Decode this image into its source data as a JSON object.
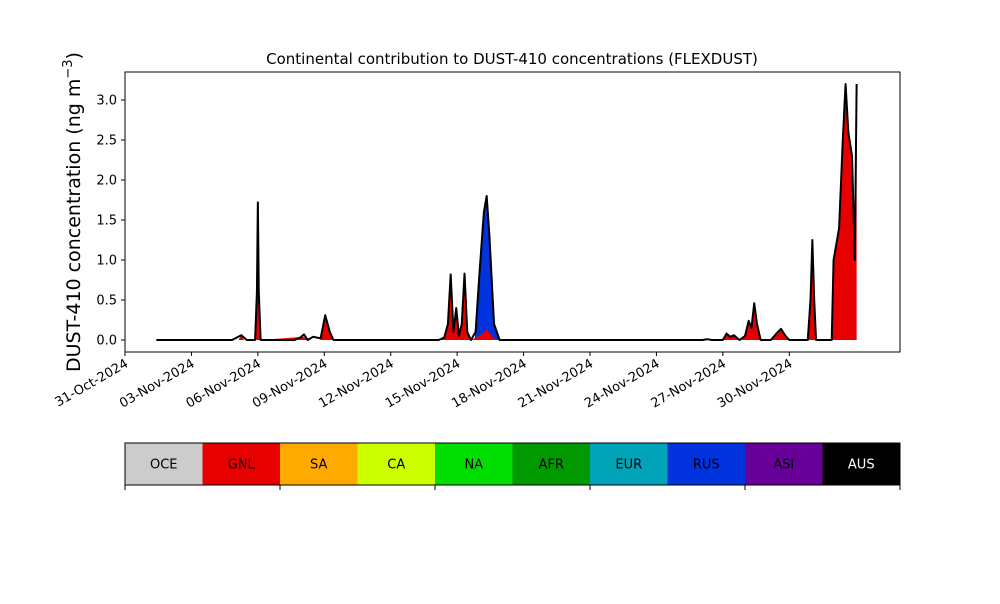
{
  "chart_data": {
    "type": "area",
    "title": "Continental contribution to DUST-410 concentrations (FLEXDUST)",
    "ylabel_main": "DUST-410 concentration (ng m",
    "ylabel_exp": "−3",
    "ylabel_close": ")",
    "xlabel": "",
    "ylim": [
      -0.15,
      3.35
    ],
    "yticks": [
      0.0,
      0.5,
      1.0,
      1.5,
      2.0,
      2.5,
      3.0
    ],
    "ytick_labels": [
      "0.0",
      "0.5",
      "1.0",
      "1.5",
      "2.0",
      "2.5",
      "3.0"
    ],
    "xlim_days": [
      "2024-10-31T00:00",
      "2024-12-05T00:00"
    ],
    "xticks": [
      "2024-10-31",
      "2024-11-03",
      "2024-11-06",
      "2024-11-09",
      "2024-11-12",
      "2024-11-15",
      "2024-11-18",
      "2024-11-21",
      "2024-11-24",
      "2024-11-27",
      "2024-11-30"
    ],
    "xtick_labels": [
      "31-Oct-2024",
      "03-Nov-2024",
      "06-Nov-2024",
      "09-Nov-2024",
      "12-Nov-2024",
      "15-Nov-2024",
      "18-Nov-2024",
      "21-Nov-2024",
      "24-Nov-2024",
      "27-Nov-2024",
      "30-Nov-2024"
    ],
    "grid": false,
    "total_series": {
      "name": "total",
      "color": "#000000",
      "points": [
        [
          "2024-11-01T10:00",
          0.0
        ],
        [
          "2024-11-04T20:00",
          0.0
        ],
        [
          "2024-11-05T06:00",
          0.06
        ],
        [
          "2024-11-05T12:00",
          0.0
        ],
        [
          "2024-11-05T21:00",
          0.0
        ],
        [
          "2024-11-05T23:00",
          0.6
        ],
        [
          "2024-11-06T00:00",
          1.72
        ],
        [
          "2024-11-06T01:00",
          0.6
        ],
        [
          "2024-11-06T03:00",
          0.0
        ],
        [
          "2024-11-07T16:00",
          0.0
        ],
        [
          "2024-11-07T22:00",
          0.03
        ],
        [
          "2024-11-08T02:00",
          0.07
        ],
        [
          "2024-11-08T06:00",
          0.0
        ],
        [
          "2024-11-08T12:00",
          0.04
        ],
        [
          "2024-11-08T20:00",
          0.02
        ],
        [
          "2024-11-09T01:00",
          0.31
        ],
        [
          "2024-11-09T06:00",
          0.1
        ],
        [
          "2024-11-09T10:00",
          0.0
        ],
        [
          "2024-11-14T04:00",
          0.0
        ],
        [
          "2024-11-14T10:00",
          0.03
        ],
        [
          "2024-11-14T14:00",
          0.2
        ],
        [
          "2024-11-14T17:00",
          0.82
        ],
        [
          "2024-11-14T20:00",
          0.1
        ],
        [
          "2024-11-14T23:00",
          0.4
        ],
        [
          "2024-11-15T02:00",
          0.05
        ],
        [
          "2024-11-15T05:00",
          0.2
        ],
        [
          "2024-11-15T08:00",
          0.83
        ],
        [
          "2024-11-15T11:00",
          0.1
        ],
        [
          "2024-11-15T15:00",
          0.0
        ],
        [
          "2024-11-15T20:00",
          0.1
        ],
        [
          "2024-11-16T00:00",
          0.8
        ],
        [
          "2024-11-16T05:00",
          1.6
        ],
        [
          "2024-11-16T08:00",
          1.8
        ],
        [
          "2024-11-16T11:00",
          1.3
        ],
        [
          "2024-11-16T16:00",
          0.2
        ],
        [
          "2024-11-16T22:00",
          0.0
        ],
        [
          "2024-11-18T08:00",
          0.0
        ],
        [
          "2024-11-19T00:00",
          0.0
        ],
        [
          "2024-11-26T02:00",
          0.0
        ],
        [
          "2024-11-26T07:00",
          0.01
        ],
        [
          "2024-11-26T12:00",
          0.0
        ],
        [
          "2024-11-27T00:00",
          0.0
        ],
        [
          "2024-11-27T04:00",
          0.08
        ],
        [
          "2024-11-27T08:00",
          0.04
        ],
        [
          "2024-11-27T12:00",
          0.06
        ],
        [
          "2024-11-27T18:00",
          0.0
        ],
        [
          "2024-11-28T00:00",
          0.05
        ],
        [
          "2024-11-28T04:00",
          0.24
        ],
        [
          "2024-11-28T07:00",
          0.15
        ],
        [
          "2024-11-28T10:00",
          0.46
        ],
        [
          "2024-11-28T13:00",
          0.2
        ],
        [
          "2024-11-28T17:00",
          0.0
        ],
        [
          "2024-11-29T04:00",
          0.0
        ],
        [
          "2024-11-29T10:00",
          0.08
        ],
        [
          "2024-11-29T15:00",
          0.14
        ],
        [
          "2024-11-29T20:00",
          0.05
        ],
        [
          "2024-11-30T00:00",
          0.0
        ],
        [
          "2024-11-30T20:00",
          0.0
        ],
        [
          "2024-11-30T23:00",
          0.5
        ],
        [
          "2024-12-01T01:00",
          1.25
        ],
        [
          "2024-12-01T03:00",
          0.5
        ],
        [
          "2024-12-01T05:00",
          0.0
        ],
        [
          "2024-12-01T22:00",
          0.0
        ],
        [
          "2024-12-02T00:00",
          1.0
        ],
        [
          "2024-12-02T06:00",
          1.4
        ],
        [
          "2024-12-02T10:00",
          2.5
        ],
        [
          "2024-12-02T13:00",
          3.2
        ],
        [
          "2024-12-02T16:00",
          2.6
        ],
        [
          "2024-12-02T20:00",
          2.3
        ],
        [
          "2024-12-02T23:00",
          1.0
        ],
        [
          "2024-12-03T01:00",
          3.2
        ]
      ]
    },
    "stacked_series": [
      {
        "name": "RUS",
        "color": "#0033dd",
        "points": [
          [
            "2024-11-15T19:00",
            0.0
          ],
          [
            "2024-11-16T00:00",
            0.8
          ],
          [
            "2024-11-16T05:00",
            1.6
          ],
          [
            "2024-11-16T08:00",
            1.8
          ],
          [
            "2024-11-16T11:00",
            1.3
          ],
          [
            "2024-11-16T16:00",
            0.2
          ],
          [
            "2024-11-16T22:00",
            0.0
          ]
        ]
      },
      {
        "name": "GNL",
        "color": "#e60000",
        "points": [
          [
            "2024-11-05T03:00",
            0.0
          ],
          [
            "2024-11-05T06:00",
            0.06
          ],
          [
            "2024-11-05T09:00",
            0.0
          ],
          [
            "2024-11-05T21:00",
            0.0
          ],
          [
            "2024-11-05T23:00",
            0.6
          ],
          [
            "2024-11-06T00:00",
            1.7
          ],
          [
            "2024-11-06T01:00",
            0.6
          ],
          [
            "2024-11-06T03:00",
            0.0
          ],
          [
            "2024-11-08T02:00",
            0.04
          ],
          [
            "2024-11-08T06:00",
            0.0
          ],
          [
            "2024-11-08T20:00",
            0.0
          ],
          [
            "2024-11-09T01:00",
            0.3
          ],
          [
            "2024-11-09T06:00",
            0.1
          ],
          [
            "2024-11-09T10:00",
            0.0
          ],
          [
            "2024-11-14T04:00",
            0.0
          ],
          [
            "2024-11-14T10:00",
            0.03
          ],
          [
            "2024-11-14T14:00",
            0.2
          ],
          [
            "2024-11-14T17:00",
            0.8
          ],
          [
            "2024-11-14T20:00",
            0.1
          ],
          [
            "2024-11-14T23:00",
            0.4
          ],
          [
            "2024-11-15T02:00",
            0.05
          ],
          [
            "2024-11-15T05:00",
            0.2
          ],
          [
            "2024-11-15T08:00",
            0.82
          ],
          [
            "2024-11-15T11:00",
            0.1
          ],
          [
            "2024-11-15T15:00",
            0.0
          ],
          [
            "2024-11-16T00:00",
            0.05
          ],
          [
            "2024-11-16T08:00",
            0.13
          ],
          [
            "2024-11-16T16:00",
            0.02
          ],
          [
            "2024-11-16T22:00",
            0.0
          ],
          [
            "2024-11-27T00:00",
            0.0
          ],
          [
            "2024-11-27T04:00",
            0.08
          ],
          [
            "2024-11-27T08:00",
            0.04
          ],
          [
            "2024-11-27T12:00",
            0.06
          ],
          [
            "2024-11-27T18:00",
            0.0
          ],
          [
            "2024-11-28T00:00",
            0.05
          ],
          [
            "2024-11-28T04:00",
            0.24
          ],
          [
            "2024-11-28T07:00",
            0.15
          ],
          [
            "2024-11-28T10:00",
            0.45
          ],
          [
            "2024-11-28T13:00",
            0.2
          ],
          [
            "2024-11-28T17:00",
            0.0
          ],
          [
            "2024-11-29T04:00",
            0.0
          ],
          [
            "2024-11-29T10:00",
            0.08
          ],
          [
            "2024-11-29T15:00",
            0.14
          ],
          [
            "2024-11-29T20:00",
            0.05
          ],
          [
            "2024-11-30T00:00",
            0.0
          ],
          [
            "2024-11-30T20:00",
            0.0
          ],
          [
            "2024-11-30T23:00",
            0.5
          ],
          [
            "2024-12-01T01:00",
            1.22
          ],
          [
            "2024-12-01T03:00",
            0.5
          ],
          [
            "2024-12-01T05:00",
            0.0
          ],
          [
            "2024-12-01T22:00",
            0.0
          ],
          [
            "2024-12-02T00:00",
            1.0
          ],
          [
            "2024-12-02T06:00",
            1.4
          ],
          [
            "2024-12-02T10:00",
            2.5
          ],
          [
            "2024-12-02T13:00",
            3.15
          ],
          [
            "2024-12-02T16:00",
            2.6
          ],
          [
            "2024-12-02T20:00",
            2.3
          ],
          [
            "2024-12-02T23:00",
            1.0
          ],
          [
            "2024-12-03T01:00",
            3.2
          ],
          [
            "2024-12-03T01:00",
            0.0
          ]
        ]
      }
    ],
    "legend": {
      "placement": "bottom",
      "items": [
        {
          "label": "OCE",
          "color": "#cccccc",
          "text_color": "#000000"
        },
        {
          "label": "GNL",
          "color": "#e60000",
          "text_color": "#000000"
        },
        {
          "label": "SA",
          "color": "#ffaa00",
          "text_color": "#000000"
        },
        {
          "label": "CA",
          "color": "#ccff00",
          "text_color": "#000000"
        },
        {
          "label": "NA",
          "color": "#00dd00",
          "text_color": "#000000"
        },
        {
          "label": "AFR",
          "color": "#009900",
          "text_color": "#000000"
        },
        {
          "label": "EUR",
          "color": "#00a3b8",
          "text_color": "#000000"
        },
        {
          "label": "RUS",
          "color": "#0033dd",
          "text_color": "#000000"
        },
        {
          "label": "ASI",
          "color": "#660099",
          "text_color": "#000000"
        },
        {
          "label": "AUS",
          "color": "#000000",
          "text_color": "#ffffff"
        }
      ]
    }
  }
}
